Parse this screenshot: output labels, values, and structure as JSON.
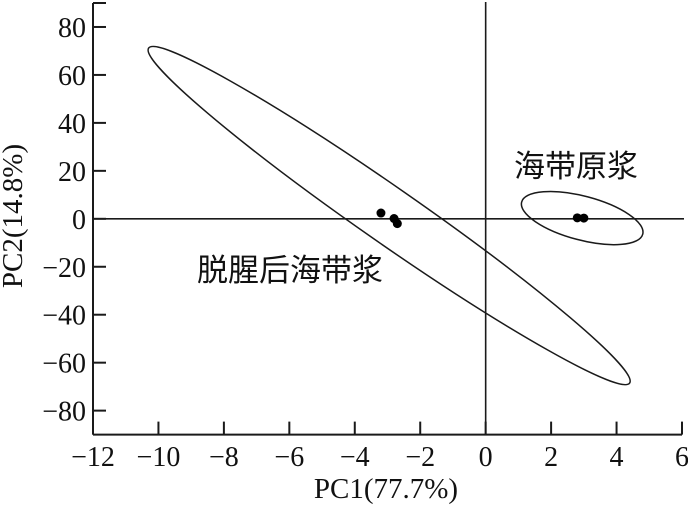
{
  "chart_data": {
    "type": "scatter",
    "title": "",
    "xlabel": "PC1(77.7%)",
    "ylabel": "PC2(14.8%)",
    "xlim": [
      -12,
      6
    ],
    "ylim": [
      -90,
      90
    ],
    "x_ticks": [
      -12,
      -10,
      -8,
      -6,
      -4,
      -2,
      0,
      2,
      4,
      6
    ],
    "y_ticks": [
      -80,
      -60,
      -40,
      -20,
      0,
      20,
      40,
      60,
      80
    ],
    "y_axis_end_tick": 90,
    "grid": false,
    "legend_position": "none",
    "crosshair_lines": {
      "vertical_at_x": 0,
      "horizontal_at_y": 0
    },
    "series": [
      {
        "name": "脱腥后海带浆",
        "points": [
          [
            -3.2,
            2.4
          ],
          [
            -2.8,
            0.1
          ],
          [
            -2.7,
            -2.0
          ]
        ],
        "ellipse": {
          "center": [
            -2.95,
            1.35
          ],
          "major_tip_1": [
            -10.3,
            71.2
          ],
          "major_tip_2": [
            4.4,
            -68.5
          ],
          "minor_ratio": 0.095
        },
        "label_pos": [
          -5.97,
          -21.3
        ]
      },
      {
        "name": "海带原浆",
        "points": [
          [
            2.8,
            0.4
          ],
          [
            3.0,
            0.3
          ]
        ],
        "ellipse": {
          "center": [
            2.94,
            0.3
          ],
          "major_tip_1": [
            1.1,
            7.0
          ],
          "major_tip_2": [
            4.8,
            -6.4
          ],
          "minor_ratio": 0.35
        },
        "label_pos": [
          2.77,
          22.0
        ]
      }
    ],
    "colors": {
      "stroke": "#1a1a1a",
      "point": "#000000",
      "background": "#ffffff"
    }
  }
}
